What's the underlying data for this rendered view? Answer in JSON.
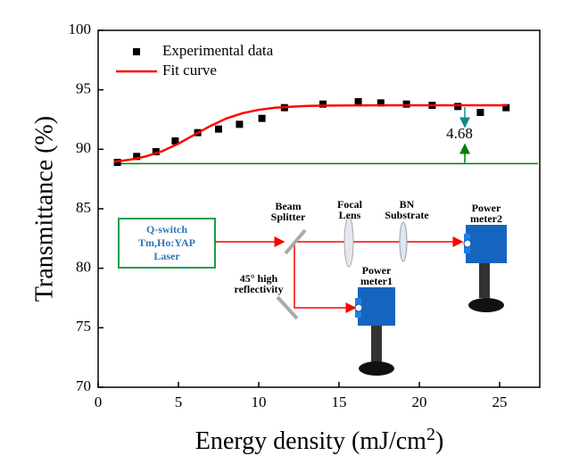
{
  "chart_data": {
    "type": "scatter",
    "xlabel": [
      "Energy density (mJ/cm",
      "2",
      ")"
    ],
    "ylabel": "Transmittance (%)",
    "xlim": [
      0,
      27.5
    ],
    "ylim": [
      70,
      100
    ],
    "xticks": [
      0,
      5,
      10,
      15,
      20,
      25
    ],
    "yticks": [
      70,
      75,
      80,
      85,
      90,
      95,
      100
    ],
    "legend": "upper left",
    "series": [
      {
        "name": "Experimental data",
        "type": "scatter",
        "color": "#000000",
        "x": [
          1.2,
          2.4,
          3.6,
          4.8,
          6.2,
          7.5,
          8.8,
          10.2,
          11.6,
          14,
          16.2,
          17.6,
          19.2,
          20.8,
          22.4,
          23.8,
          25.4
        ],
        "values": [
          88.9,
          89.4,
          89.8,
          90.7,
          91.4,
          91.7,
          92.1,
          92.6,
          93.5,
          93.8,
          94.0,
          93.9,
          93.8,
          93.7,
          93.6,
          93.1,
          93.5
        ]
      },
      {
        "name": "Fit curve",
        "type": "line",
        "color": "#ff0000",
        "x": [
          1,
          2,
          3,
          4,
          5,
          6,
          7,
          8,
          9,
          10,
          11,
          12,
          13,
          14,
          16,
          18,
          20,
          22,
          25.5
        ],
        "values": [
          88.96,
          89.13,
          89.41,
          89.85,
          90.47,
          91.23,
          91.97,
          92.6,
          93.04,
          93.32,
          93.49,
          93.58,
          93.64,
          93.67,
          93.69,
          93.7,
          93.7,
          93.7,
          93.7
        ]
      }
    ],
    "hline": {
      "value": 88.8,
      "color": "#008000"
    },
    "annotation": "4.68"
  },
  "inset": {
    "laser": [
      "Q-switch",
      "Tm,Ho:YAP",
      "Laser"
    ],
    "beam_splitter": [
      "Beam",
      "Splitter"
    ],
    "focal_lens": [
      "Focal",
      "Lens"
    ],
    "substrate": [
      "BN",
      "Substrate"
    ],
    "power_meter2": [
      "Power",
      "meter2"
    ],
    "mirror": [
      "45° high",
      "reflectivity"
    ],
    "power_meter1": [
      "Power",
      "meter1"
    ]
  }
}
